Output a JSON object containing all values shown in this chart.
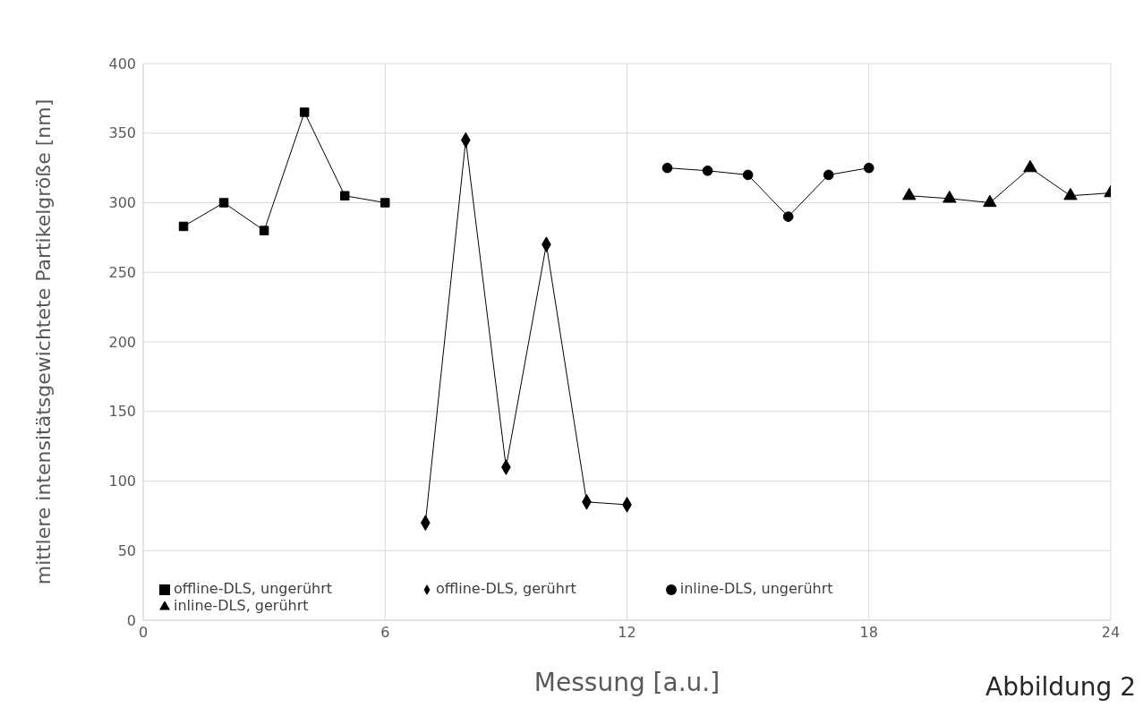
{
  "chart_data": {
    "type": "line",
    "xlabel": "Messung [a.u.]",
    "ylabel": "mittlere intensitätsgewichtete Partikelgröße [nm]",
    "annotations": [
      "Abbildung 2"
    ],
    "xlim": [
      0,
      24
    ],
    "xticks": [
      0,
      6,
      12,
      18,
      24
    ],
    "ylim": [
      0,
      400
    ],
    "yticks": [
      0,
      50,
      100,
      150,
      200,
      250,
      300,
      350,
      400
    ],
    "grid": true,
    "legend": "bottom",
    "series": [
      {
        "name": "offline-DLS, ungerührt",
        "color": "#000000",
        "marker": "square",
        "x": [
          1,
          2,
          3,
          4,
          5,
          6
        ],
        "values": [
          283,
          300,
          280,
          365,
          305,
          300
        ]
      },
      {
        "name": "offline-DLS, gerührt",
        "color": "#000000",
        "marker": "diamond",
        "x": [
          7,
          8,
          9,
          10,
          11,
          12
        ],
        "values": [
          70,
          345,
          110,
          270,
          85,
          83
        ]
      },
      {
        "name": "inline-DLS, ungerührt",
        "color": "#000000",
        "marker": "circle",
        "x": [
          13,
          14,
          15,
          16,
          17,
          18
        ],
        "values": [
          325,
          323,
          320,
          290,
          320,
          325
        ]
      },
      {
        "name": "inline-DLS, gerührt",
        "color": "#000000",
        "marker": "triangle",
        "x": [
          19,
          20,
          21,
          22,
          23,
          24
        ],
        "values": [
          305,
          303,
          300,
          325,
          305,
          307
        ]
      }
    ]
  }
}
